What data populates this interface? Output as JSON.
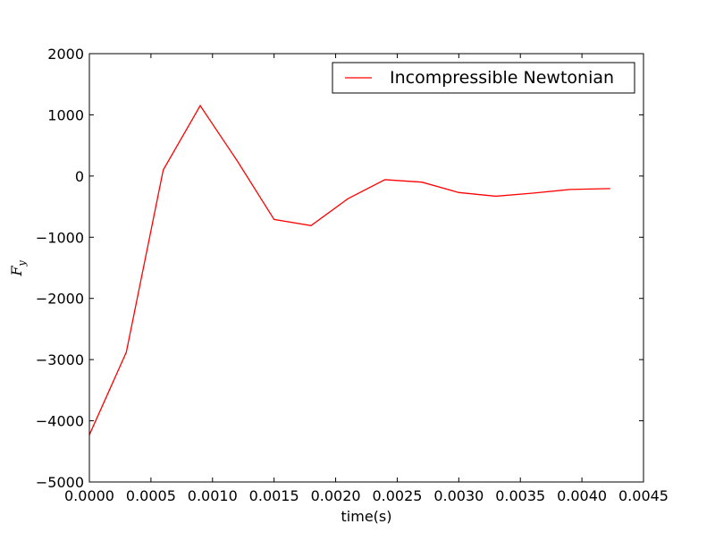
{
  "chart_data": {
    "type": "line",
    "title": "",
    "xlabel": "time(s)",
    "ylabel": "F",
    "ylabel_subscript": "y",
    "xlim": [
      0.0,
      0.0045
    ],
    "ylim": [
      -5000,
      2000
    ],
    "xticks": [
      0.0,
      0.0005,
      0.001,
      0.0015,
      0.002,
      0.0025,
      0.003,
      0.0035,
      0.004,
      0.0045
    ],
    "xtick_labels": [
      "0.0000",
      "0.0005",
      "0.0010",
      "0.0015",
      "0.0020",
      "0.0025",
      "0.0030",
      "0.0035",
      "0.0040",
      "0.0045"
    ],
    "yticks": [
      -5000,
      -4000,
      -3000,
      -2000,
      -1000,
      0,
      1000,
      2000
    ],
    "ytick_labels": [
      "−5000",
      "−4000",
      "−3000",
      "−2000",
      "−1000",
      "0",
      "1000",
      "2000"
    ],
    "grid": false,
    "legend_position": "top-right",
    "series": [
      {
        "name": "Incompressible Newtonian",
        "color": "#ff0000",
        "x": [
          0.0,
          0.0003,
          0.0006,
          0.0009,
          0.0012,
          0.0015,
          0.0018,
          0.0021,
          0.0024,
          0.0027,
          0.003,
          0.0033,
          0.0036,
          0.0039,
          0.00423
        ],
        "y": [
          -4230,
          -2880,
          100,
          1150,
          250,
          -710,
          -810,
          -370,
          -60,
          -100,
          -270,
          -330,
          -280,
          -220,
          -205
        ]
      }
    ]
  }
}
